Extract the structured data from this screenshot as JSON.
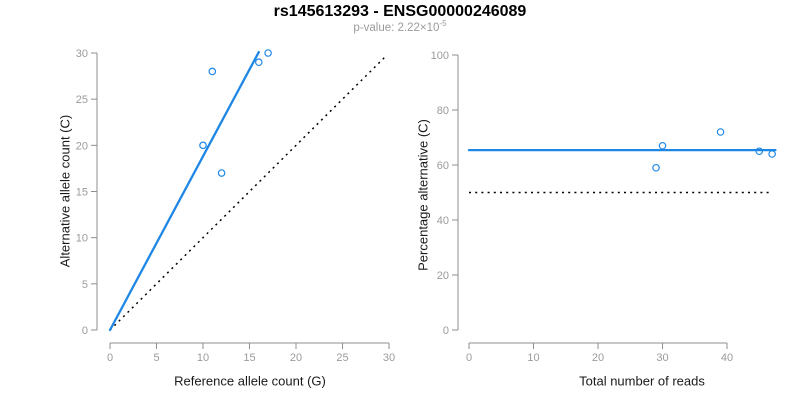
{
  "header": {
    "title": "rs145613293 - ENSG00000246089",
    "p_label": "p-value: ",
    "p_mantissa": "2.22",
    "p_times": "×10",
    "p_exponent": "-5"
  },
  "colors": {
    "accent_blue": "#1E87E5",
    "axis_line_gray": "#8F8F8F",
    "tick_label_gray": "#9B9B9B",
    "axis_title_color": "#1A1A1A",
    "title_color": "#000000",
    "subtitle_gray": "#9B9B9B",
    "reference_line_black": "#000000",
    "background": "#FFFFFF"
  },
  "chart_data": [
    {
      "type": "scatter",
      "title": "rs145613293 - ENSG00000246089",
      "subtitle": "p-value: 2.22×10^-5",
      "xlabel": "Reference allele count (G)",
      "ylabel": "Alternative allele count (C)",
      "xlim": [
        0,
        30
      ],
      "ylim": [
        0,
        30
      ],
      "xticks": [
        0,
        5,
        10,
        15,
        20,
        25,
        30
      ],
      "yticks": [
        0,
        5,
        10,
        15,
        20,
        25,
        30
      ],
      "grid": false,
      "legend": null,
      "points": [
        [
          10,
          20
        ],
        [
          11,
          28
        ],
        [
          12,
          17
        ],
        [
          16,
          29
        ],
        [
          17,
          30
        ]
      ],
      "fit_line": {
        "label": "regression fit through origin",
        "x": [
          0,
          16
        ],
        "y": [
          0,
          30.1
        ],
        "style": "solid"
      },
      "reference_line": {
        "label": "identity line y = x",
        "x": [
          0,
          29.8
        ],
        "y": [
          0,
          29.8
        ],
        "style": "dotted"
      }
    },
    {
      "type": "scatter",
      "xlabel": "Total number of reads",
      "ylabel": "Percentage alternative (C)",
      "xlim": [
        0,
        47.5
      ],
      "ylim": [
        0,
        100
      ],
      "xticks": [
        0,
        10,
        20,
        30,
        40
      ],
      "yticks": [
        0,
        20,
        40,
        60,
        80,
        100
      ],
      "grid": false,
      "legend": null,
      "points": [
        [
          29,
          59
        ],
        [
          30,
          67
        ],
        [
          39,
          72
        ],
        [
          45,
          65
        ],
        [
          47,
          64
        ]
      ],
      "fit_line": {
        "label": "mean percentage alternative",
        "x": [
          0,
          47.5
        ],
        "y": [
          65.4,
          65.4
        ],
        "style": "solid"
      },
      "reference_line": {
        "label": "50% balanced-expression line",
        "x": [
          0,
          47
        ],
        "y": [
          50,
          50
        ],
        "style": "dotted"
      }
    }
  ]
}
